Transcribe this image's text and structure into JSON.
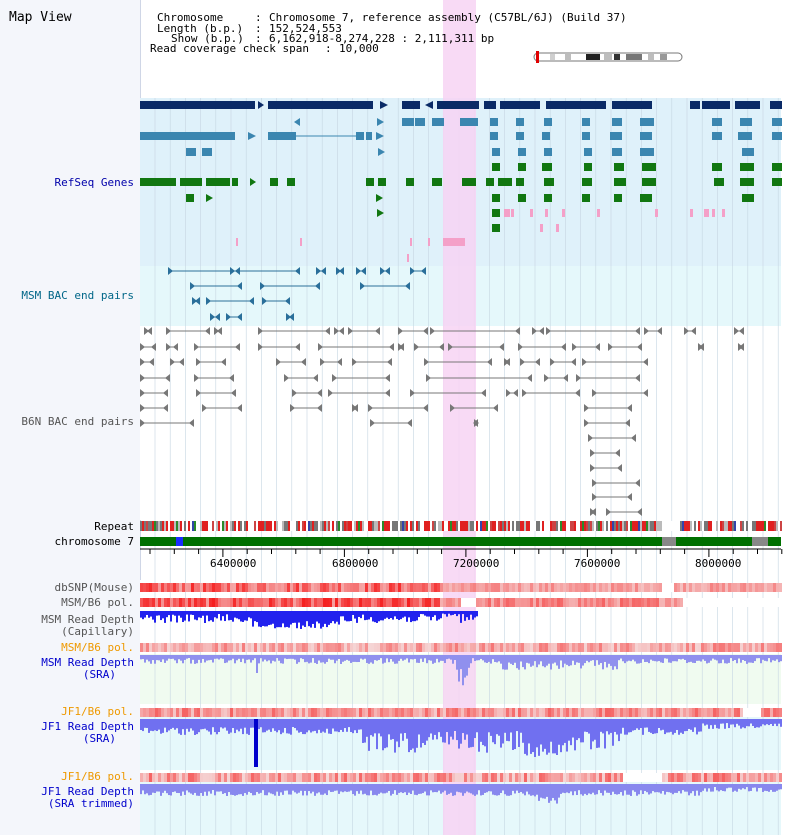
{
  "app": {
    "title": "Map View"
  },
  "header": {
    "chromosome_label": "Chromosome",
    "chromosome_value": "Chromosome 7, reference assembly (C57BL/6J) (Build 37)",
    "length_label": "Length (b.p.)",
    "length_value": "152,524,553",
    "show_label": "Show (b.p.)",
    "show_value": "6,162,918-8,274,228 : 2,111,311 bp",
    "span_label": "Read coverage check span",
    "span_value": "10,000"
  },
  "tracks": {
    "refseq": "RefSeq Genes",
    "msm_bac": "MSM BAC end pairs",
    "b6n_bac": "B6N BAC end pairs",
    "repeat": "Repeat",
    "chromosome": "chromosome 7",
    "dbsnp": "dbSNP(Mouse)",
    "msm_b6_pol": "MSM/B6 pol.",
    "msm_depth_cap_1": "MSM Read Depth",
    "msm_depth_cap_2": "(Capillary)",
    "msm_b6_pol_2": "MSM/B6 pol.",
    "msm_depth_sra_1": "MSM Read Depth",
    "msm_depth_sra_2": "(SRA)",
    "jf1_b6_pol": "JF1/B6 pol.",
    "jf1_depth_sra_1": "JF1 Read Depth",
    "jf1_depth_sra_2": "(SRA)",
    "jf1_b6_pol_2": "JF1/B6 pol.",
    "jf1_depth_trim_1": "JF1 Read Depth",
    "jf1_depth_trim_2": "(SRA trimmed)"
  },
  "ruler": {
    "ticks": [
      "6400000",
      "6800000",
      "7200000",
      "7600000",
      "8000000"
    ]
  },
  "colors": {
    "refseq_label": "#0000aa",
    "msm_label": "#006688",
    "gray_label": "#555555",
    "orange_label": "#ee9900",
    "blue_label": "#0000cc",
    "highlight": "#f7d3f3"
  }
}
